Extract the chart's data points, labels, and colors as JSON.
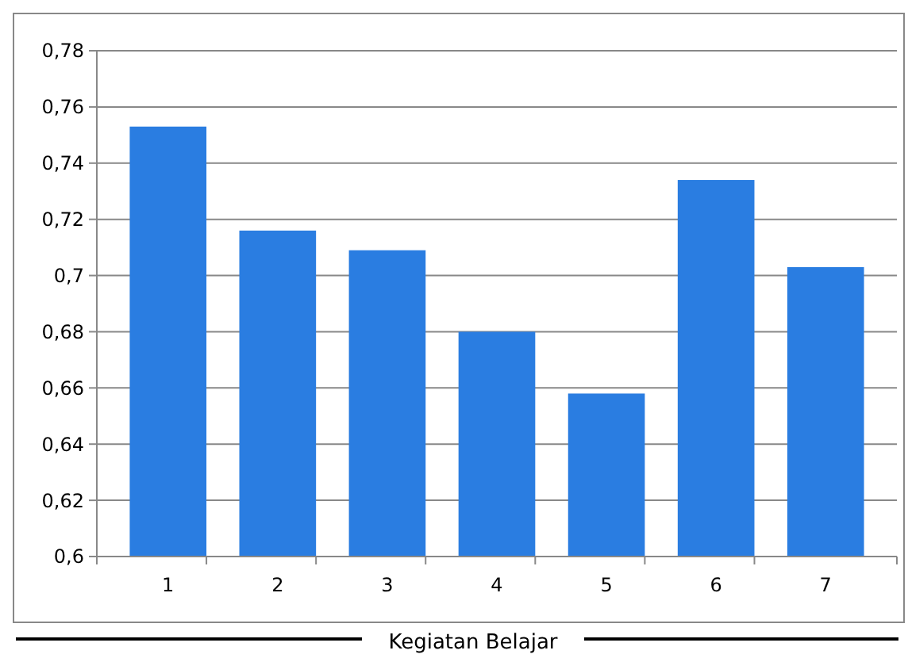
{
  "chart_data": {
    "type": "bar",
    "xlabel": "Kegiatan Belajar",
    "categories": [
      "1",
      "2",
      "3",
      "4",
      "5",
      "6",
      "7"
    ],
    "values": [
      0.753,
      0.716,
      0.709,
      0.68,
      0.658,
      0.734,
      0.703
    ],
    "color": "#2a7de1",
    "ylim": [
      0.6,
      0.78
    ],
    "yticks": [
      {
        "value": 0.6,
        "label": "0,6"
      },
      {
        "value": 0.62,
        "label": "0,62"
      },
      {
        "value": 0.64,
        "label": "0,64"
      },
      {
        "value": 0.66,
        "label": "0,66"
      },
      {
        "value": 0.68,
        "label": "0,68"
      },
      {
        "value": 0.7,
        "label": "0,7"
      },
      {
        "value": 0.72,
        "label": "0,72"
      },
      {
        "value": 0.74,
        "label": "0,74"
      },
      {
        "value": 0.76,
        "label": "0,76"
      },
      {
        "value": 0.78,
        "label": "0,78"
      }
    ],
    "grid": "y"
  }
}
